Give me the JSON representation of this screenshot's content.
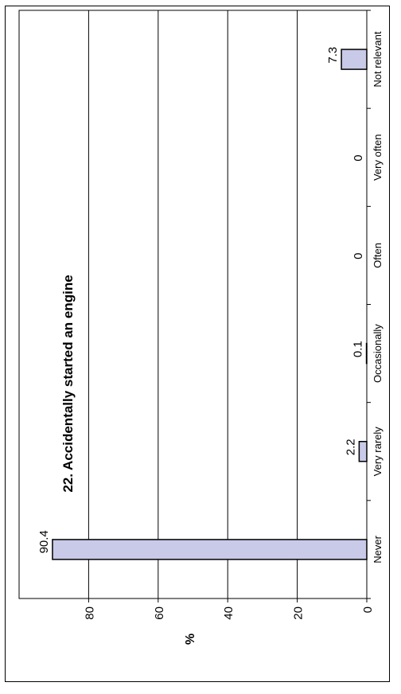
{
  "chart_data": {
    "type": "bar",
    "title": "22. Accidentally started an engine",
    "ylabel": "%",
    "xlabel": "",
    "categories": [
      "Never",
      "Very rarely",
      "Occasionally",
      "Often",
      "Very often",
      "Not relevant"
    ],
    "values": [
      90.4,
      2.2,
      0.1,
      0,
      0,
      7.3
    ],
    "value_labels": [
      "90.4",
      "2.2",
      "0.1",
      "0",
      "0",
      "7.3"
    ],
    "ylim": [
      0,
      100
    ],
    "yticks": [
      0,
      20,
      40,
      60,
      80
    ],
    "ytick_labels": [
      "0",
      "20",
      "40",
      "60",
      "80"
    ],
    "grid": true,
    "orientation": "rotated-90",
    "bar_color": "#c8cae8"
  }
}
